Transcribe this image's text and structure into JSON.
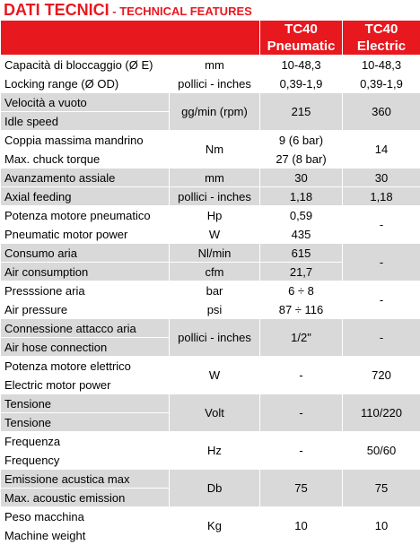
{
  "title": {
    "main": "DATI TECNICI",
    "sub": " - TECHNICAL FEATURES"
  },
  "columns": [
    {
      "model": "TC40",
      "type": "Pneumatic"
    },
    {
      "model": "TC40",
      "type": "Electric"
    }
  ],
  "rows": [
    {
      "label1": "Capacità di bloccaggio (Ø E)",
      "unit1": "mm",
      "p1": "10-48,3",
      "e1": "10-48,3",
      "label2": "Locking range (Ø OD)",
      "unit2": "pollici - inches",
      "p2": "0,39-1,9",
      "e2": "0,39-1,9"
    },
    {
      "label1": "Velocità a vuoto",
      "label2": "Idle speed",
      "unit": "gg/min (rpm)",
      "p": "215",
      "e": "360"
    },
    {
      "label1": "Coppia massima mandrino",
      "label2": "Max. chuck torque",
      "unit": "Nm",
      "p1": "9 (6 bar)",
      "p2": "27 (8 bar)",
      "e": "14"
    },
    {
      "label1": "Avanzamento assiale",
      "unit1": "mm",
      "p1": "30",
      "e1": "30",
      "label2": "Axial feeding",
      "unit2": "pollici - inches",
      "p2": "1,18",
      "e2": "1,18"
    },
    {
      "label1": "Potenza motore pneumatico",
      "unit1": "Hp",
      "p1": "0,59",
      "label2": "Pneumatic motor power",
      "unit2": "W",
      "p2": "435",
      "e": "-"
    },
    {
      "label1": "Consumo aria",
      "unit1": "Nl/min",
      "p1": "615",
      "label2": "Air consumption",
      "unit2": "cfm",
      "p2": "21,7",
      "e": "-"
    },
    {
      "label1": "Presssione aria",
      "unit1": "bar",
      "p1": "6 ÷ 8",
      "label2": "Air pressure",
      "unit2": "psi",
      "p2": "87 ÷ 116",
      "e": "-"
    },
    {
      "label1": "Connessione attacco aria",
      "label2": "Air hose connection",
      "unit": "pollici - inches",
      "p": "1/2\"",
      "e": "-"
    },
    {
      "label1": "Potenza motore elettrico",
      "label2": "Electric motor power",
      "unit": "W",
      "p": "-",
      "e": "720"
    },
    {
      "label1": "Tensione",
      "label2": "Tensione",
      "unit": "Volt",
      "p": "-",
      "e": "110/220"
    },
    {
      "label1": "Frequenza",
      "label2": "Frequency",
      "unit": "Hz",
      "p": "-",
      "e": "50/60"
    },
    {
      "label1": "Emissione acustica max",
      "label2": "Max. acoustic emission",
      "unit": "Db",
      "p": "75",
      "e": "75"
    },
    {
      "label1": "Peso macchina",
      "label2": "Machine weight",
      "unit": "Kg",
      "p": "10",
      "e": "10"
    }
  ]
}
